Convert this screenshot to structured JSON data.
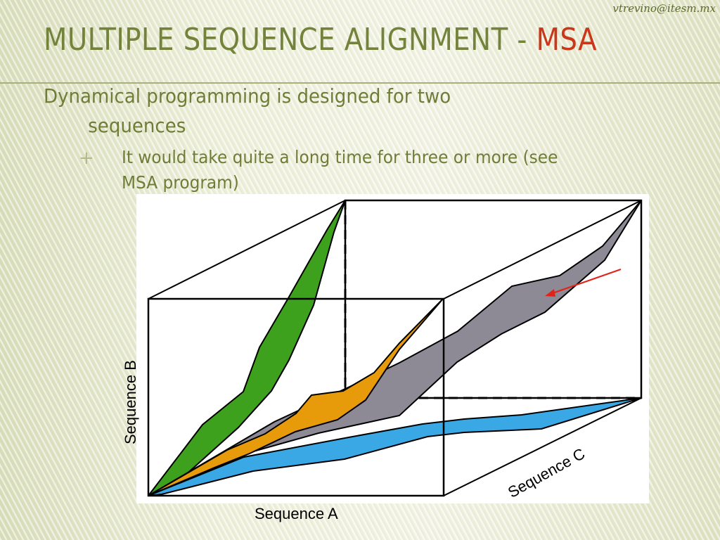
{
  "slide": {
    "email": "vtrevino@itesm.mx",
    "title_main": "MULTIPLE SEQUENCE ALIGNMENT - ",
    "title_accent": "MSA",
    "bullet1_line1": "Dynamical programming is designed for two",
    "bullet1_line2": "sequences",
    "bullet2_marker": "+",
    "bullet2_line1": "It would take quite a long time for three or more (see",
    "bullet2_line2": "MSA program)"
  },
  "diagram": {
    "label_a": "Sequence A",
    "label_b": "Sequence B",
    "label_c": "Sequence C",
    "colors": {
      "green_path": "#3ea11e",
      "orange_path": "#e79a0a",
      "gray_path": "#8d8a96",
      "blue_path": "#3aa8e4",
      "arrow": "#e2231a",
      "outline": "#000000"
    }
  }
}
